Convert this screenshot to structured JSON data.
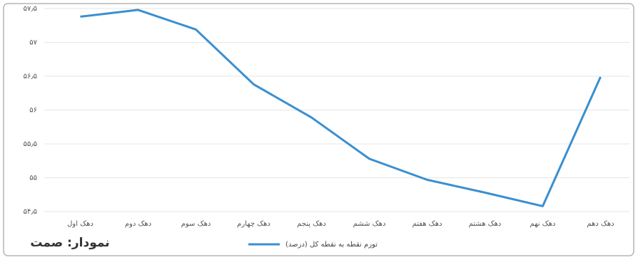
{
  "chart_data": {
    "type": "line",
    "caption": "نمودار: صمت",
    "categories": [
      "دهک اول",
      "دهک دوم",
      "دهک سوم",
      "دهک چهارم",
      "دهک پنجم",
      "دهک ششم",
      "دهک هفتم",
      "دهک هشتم",
      "دهک نهم",
      "دهک دهم"
    ],
    "series": [
      {
        "name": "تورم نقطه به نقطه کل (درصد)",
        "color": "#3a8fd0",
        "values": [
          57.38,
          57.48,
          57.19,
          56.38,
          55.89,
          55.28,
          54.97,
          54.78,
          54.58,
          56.49
        ]
      }
    ],
    "ylim": [
      54.5,
      57.5
    ],
    "yticks": [
      {
        "value": 54.5,
        "label": "۵۴٫۵"
      },
      {
        "value": 55,
        "label": "۵۵"
      },
      {
        "value": 55.5,
        "label": "۵۵٫۵"
      },
      {
        "value": 56,
        "label": "۵۶"
      },
      {
        "value": 56.5,
        "label": "۵۶٫۵"
      },
      {
        "value": 57,
        "label": "۵۷"
      },
      {
        "value": 57.5,
        "label": "۵۷٫۵"
      }
    ],
    "grid": true,
    "legend": "bottom"
  }
}
